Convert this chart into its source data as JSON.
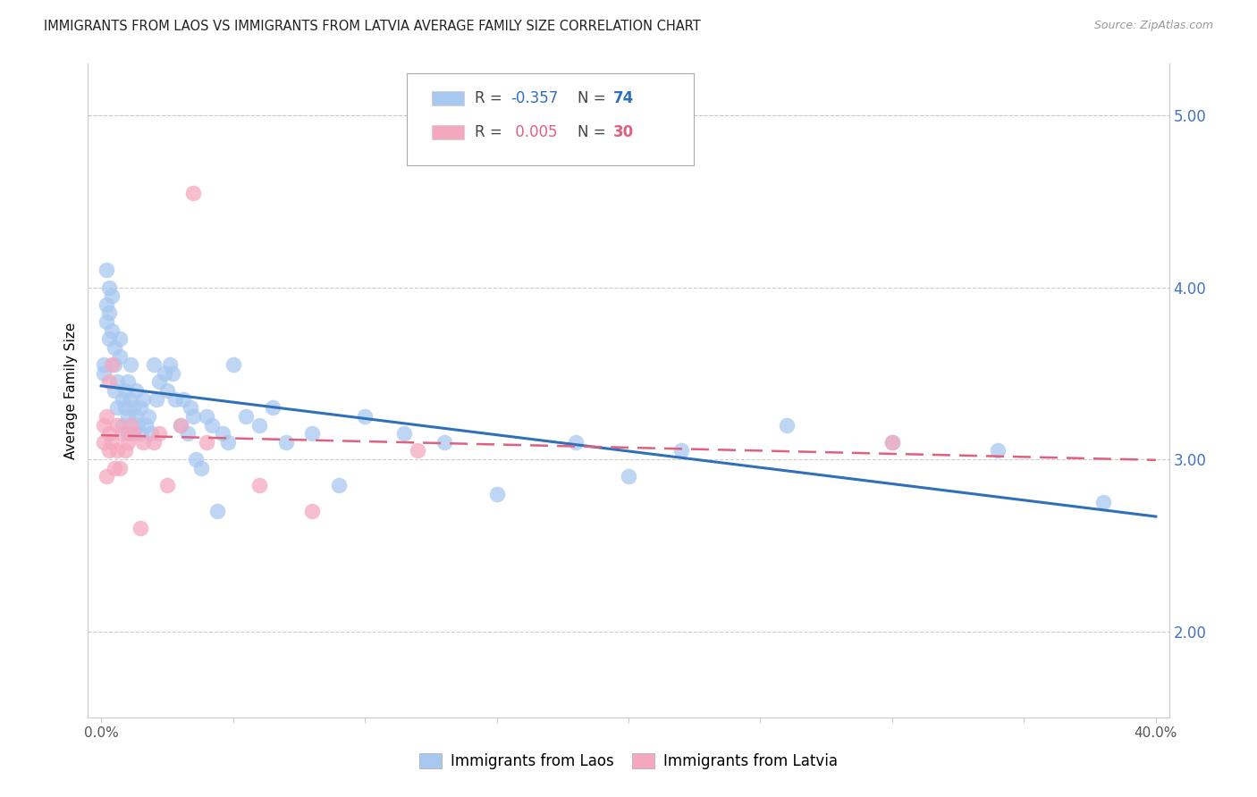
{
  "title": "IMMIGRANTS FROM LAOS VS IMMIGRANTS FROM LATVIA AVERAGE FAMILY SIZE CORRELATION CHART",
  "source": "Source: ZipAtlas.com",
  "ylabel": "Average Family Size",
  "yticks": [
    2.0,
    3.0,
    4.0,
    5.0
  ],
  "laos_color": "#A8C8F0",
  "latvia_color": "#F4A8C0",
  "laos_line_color": "#3070B8",
  "latvia_line_color": "#E06080",
  "laos_R": -0.357,
  "laos_N": 74,
  "latvia_R": 0.005,
  "latvia_N": 30,
  "background_color": "#FFFFFF",
  "grid_color": "#CCCCCC",
  "right_axis_color": "#4472C4",
  "laos_x": [
    0.001,
    0.001,
    0.002,
    0.002,
    0.002,
    0.003,
    0.003,
    0.003,
    0.004,
    0.004,
    0.005,
    0.005,
    0.005,
    0.006,
    0.006,
    0.007,
    0.007,
    0.008,
    0.008,
    0.009,
    0.009,
    0.01,
    0.01,
    0.01,
    0.011,
    0.011,
    0.012,
    0.013,
    0.013,
    0.014,
    0.015,
    0.015,
    0.016,
    0.017,
    0.018,
    0.019,
    0.02,
    0.021,
    0.022,
    0.024,
    0.025,
    0.026,
    0.027,
    0.028,
    0.03,
    0.031,
    0.033,
    0.034,
    0.035,
    0.036,
    0.038,
    0.04,
    0.042,
    0.044,
    0.046,
    0.048,
    0.05,
    0.055,
    0.06,
    0.065,
    0.07,
    0.08,
    0.09,
    0.1,
    0.115,
    0.13,
    0.15,
    0.18,
    0.2,
    0.22,
    0.26,
    0.3,
    0.34,
    0.38
  ],
  "laos_y": [
    3.5,
    3.55,
    3.8,
    3.9,
    4.1,
    3.7,
    3.85,
    4.0,
    3.75,
    3.95,
    3.4,
    3.55,
    3.65,
    3.3,
    3.45,
    3.6,
    3.7,
    3.2,
    3.35,
    3.3,
    3.4,
    3.15,
    3.25,
    3.45,
    3.35,
    3.55,
    3.3,
    3.25,
    3.4,
    3.2,
    3.3,
    3.15,
    3.35,
    3.2,
    3.25,
    3.15,
    3.55,
    3.35,
    3.45,
    3.5,
    3.4,
    3.55,
    3.5,
    3.35,
    3.2,
    3.35,
    3.15,
    3.3,
    3.25,
    3.0,
    2.95,
    3.25,
    3.2,
    2.7,
    3.15,
    3.1,
    3.55,
    3.25,
    3.2,
    3.3,
    3.1,
    3.15,
    2.85,
    3.25,
    3.15,
    3.1,
    2.8,
    3.1,
    2.9,
    3.05,
    3.2,
    3.1,
    3.05,
    2.75
  ],
  "latvia_x": [
    0.001,
    0.001,
    0.002,
    0.002,
    0.003,
    0.003,
    0.003,
    0.004,
    0.004,
    0.005,
    0.006,
    0.006,
    0.007,
    0.008,
    0.009,
    0.01,
    0.011,
    0.012,
    0.015,
    0.016,
    0.02,
    0.022,
    0.025,
    0.03,
    0.035,
    0.04,
    0.06,
    0.08,
    0.12,
    0.3
  ],
  "latvia_y": [
    3.2,
    3.1,
    2.9,
    3.25,
    3.05,
    3.15,
    3.45,
    3.55,
    3.1,
    2.95,
    3.2,
    3.05,
    2.95,
    3.15,
    3.05,
    3.1,
    3.2,
    3.15,
    2.6,
    3.1,
    3.1,
    3.15,
    2.85,
    3.2,
    4.55,
    3.1,
    2.85,
    2.7,
    3.05,
    3.1
  ],
  "ylim": [
    1.5,
    5.3
  ],
  "xlim": [
    -0.005,
    0.405
  ],
  "xtick_positions": [
    0.0,
    0.05,
    0.1,
    0.15,
    0.2,
    0.25,
    0.3,
    0.35,
    0.4
  ],
  "xtick_major": [
    0.0,
    0.2,
    0.4
  ],
  "legend_laos_label": "Immigrants from Laos",
  "legend_latvia_label": "Immigrants from Latvia"
}
